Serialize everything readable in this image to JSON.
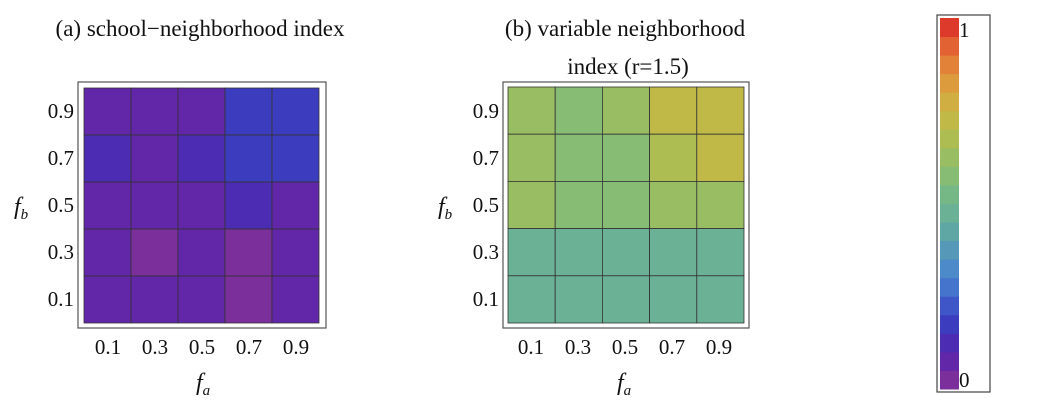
{
  "chart_data": [
    {
      "type": "heatmap",
      "title_lines": [
        "(a) school−neighborhood index"
      ],
      "xlabel": "f",
      "xlabel_sub": "a",
      "ylabel": "f",
      "ylabel_sub": "b",
      "x": [
        0.1,
        0.3,
        0.5,
        0.7,
        0.9
      ],
      "y": [
        0.1,
        0.3,
        0.5,
        0.7,
        0.9
      ],
      "x_tick_labels": [
        "0.1",
        "0.3",
        "0.5",
        "0.7",
        "0.9"
      ],
      "y_tick_labels": [
        "0.1",
        "0.3",
        "0.5",
        "0.7",
        "0.9"
      ],
      "xlim": [
        0,
        1
      ],
      "ylim": [
        0,
        1
      ],
      "values_by_row_top_to_bottom": [
        [
          0.07,
          0.06,
          0.06,
          0.17,
          0.16
        ],
        [
          0.11,
          0.06,
          0.14,
          0.16,
          0.18
        ],
        [
          0.06,
          0.09,
          0.07,
          0.13,
          0.08
        ],
        [
          0.07,
          0.02,
          0.08,
          0.04,
          0.05
        ],
        [
          0.05,
          0.06,
          0.07,
          0.04,
          0.08
        ]
      ]
    },
    {
      "type": "heatmap",
      "title_lines": [
        "(b) variable neighborhood",
        "index (r=1.5)"
      ],
      "xlabel": "f",
      "xlabel_sub": "a",
      "ylabel": "f",
      "ylabel_sub": "b",
      "x": [
        0.1,
        0.3,
        0.5,
        0.7,
        0.9
      ],
      "y": [
        0.1,
        0.3,
        0.5,
        0.7,
        0.9
      ],
      "x_tick_labels": [
        "0.1",
        "0.3",
        "0.5",
        "0.7",
        "0.9"
      ],
      "y_tick_labels": [
        "0.1",
        "0.3",
        "0.5",
        "0.7",
        "0.9"
      ],
      "xlim": [
        0,
        1
      ],
      "ylim": [
        0,
        1
      ],
      "values_by_row_top_to_bottom": [
        [
          0.6,
          0.59,
          0.6,
          0.7,
          0.71
        ],
        [
          0.6,
          0.59,
          0.59,
          0.69,
          0.7
        ],
        [
          0.6,
          0.58,
          0.59,
          0.61,
          0.62
        ],
        [
          0.45,
          0.45,
          0.45,
          0.45,
          0.46
        ],
        [
          0.45,
          0.45,
          0.45,
          0.45,
          0.48
        ]
      ]
    }
  ],
  "colorbar": {
    "min_label": "0",
    "max_label": "1",
    "range": [
      0,
      1
    ],
    "steps": 20,
    "colors_bottom_to_top": [
      "#7b2f9a",
      "#6226a8",
      "#4b2cb2",
      "#3c3cbe",
      "#3f56c8",
      "#4574cc",
      "#4d8ac9",
      "#5598b8",
      "#5ea7a4",
      "#6ab196",
      "#76b885",
      "#86bc74",
      "#99bd62",
      "#adbd52",
      "#c0b948",
      "#d1ae42",
      "#dc9c3d",
      "#e28238",
      "#e26233",
      "#de3a2c"
    ]
  }
}
